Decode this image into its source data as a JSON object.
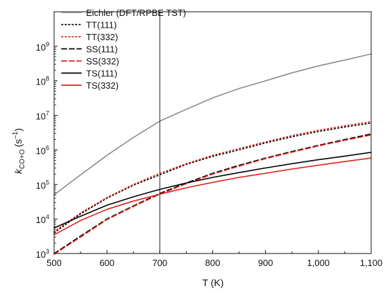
{
  "chart_data": {
    "type": "line",
    "xlabel": "T (K)",
    "ylabel": "k",
    "ylabel_subscript": "CO+O",
    "ylabel_units": "(s",
    "ylabel_units_sup": "–1",
    "ylabel_units_close": ")",
    "xlim": [
      500,
      1100
    ],
    "ylim": [
      1000,
      10000000000
    ],
    "y_scale": "log",
    "grid": false,
    "legend_position": "top-left",
    "x_ticks": [
      {
        "value": 500,
        "label": "500"
      },
      {
        "value": 600,
        "label": "600"
      },
      {
        "value": 700,
        "label": "700"
      },
      {
        "value": 800,
        "label": "800"
      },
      {
        "value": 900,
        "label": "900"
      },
      {
        "value": 1000,
        "label": "1,000"
      },
      {
        "value": 1100,
        "label": "1,100"
      }
    ],
    "y_ticks": [
      {
        "value": 1000,
        "base": "10",
        "exp": "3"
      },
      {
        "value": 10000,
        "base": "10",
        "exp": "4"
      },
      {
        "value": 100000,
        "base": "10",
        "exp": "5"
      },
      {
        "value": 1000000,
        "base": "10",
        "exp": "6"
      },
      {
        "value": 10000000,
        "base": "10",
        "exp": "7"
      },
      {
        "value": 100000000,
        "base": "10",
        "exp": "8"
      },
      {
        "value": 1000000000,
        "base": "10",
        "exp": "9"
      }
    ],
    "vertical_line_x": 700,
    "series": [
      {
        "name": "Eichler (DFT/RPBE TST)",
        "color": "#8c8c8c",
        "dash": "solid",
        "x": [
          500,
          550,
          600,
          650,
          700,
          750,
          800,
          850,
          900,
          950,
          1000,
          1050,
          1100
        ],
        "y": [
          50000,
          190000,
          700000,
          2300000,
          6800000,
          15000000,
          32000000,
          60000000,
          100000000,
          170000000,
          270000000,
          400000000,
          600000000
        ]
      },
      {
        "name": "TT(111)",
        "color": "#000000",
        "dash": "dot",
        "x": [
          500,
          550,
          600,
          650,
          700,
          750,
          800,
          850,
          900,
          950,
          1000,
          1050,
          1100
        ],
        "y": [
          4000,
          14000,
          40000,
          95000,
          190000,
          380000,
          650000,
          1000000,
          1600000,
          2400000,
          3400000,
          4600000,
          6000000
        ]
      },
      {
        "name": "TT(332)",
        "color": "#e0201a",
        "dash": "dot",
        "x": [
          500,
          550,
          600,
          650,
          700,
          750,
          800,
          850,
          900,
          950,
          1000,
          1050,
          1100
        ],
        "y": [
          4300,
          15000,
          42000,
          100000,
          210000,
          400000,
          700000,
          1100000,
          1700000,
          2600000,
          3700000,
          5000000,
          6600000
        ]
      },
      {
        "name": "SS(111)",
        "color": "#000000",
        "dash": "dash",
        "x": [
          500,
          550,
          600,
          650,
          700,
          750,
          800,
          850,
          900,
          950,
          1000,
          1050,
          1100
        ],
        "y": [
          1000,
          3200,
          10000,
          24000,
          55000,
          110000,
          210000,
          360000,
          580000,
          900000,
          1350000,
          2000000,
          2900000
        ]
      },
      {
        "name": "SS(332)",
        "color": "#e0201a",
        "dash": "dash",
        "x": [
          500,
          550,
          600,
          650,
          700,
          750,
          800,
          850,
          900,
          950,
          1000,
          1050,
          1100
        ],
        "y": [
          950,
          3000,
          9600,
          23000,
          52000,
          105000,
          200000,
          340000,
          560000,
          860000,
          1300000,
          1900000,
          2700000
        ]
      },
      {
        "name": "TS(111)",
        "color": "#000000",
        "dash": "solid",
        "x": [
          500,
          550,
          600,
          650,
          700,
          750,
          800,
          850,
          900,
          950,
          1000,
          1050,
          1100
        ],
        "y": [
          5500,
          12000,
          25000,
          44000,
          72000,
          110000,
          160000,
          220000,
          300000,
          400000,
          520000,
          660000,
          850000
        ]
      },
      {
        "name": "TS(332)",
        "color": "#e0201a",
        "dash": "solid",
        "x": [
          500,
          550,
          600,
          650,
          700,
          750,
          800,
          850,
          900,
          950,
          1000,
          1050,
          1100
        ],
        "y": [
          3500,
          9000,
          19000,
          33000,
          52000,
          80000,
          115000,
          160000,
          210000,
          280000,
          360000,
          460000,
          580000
        ]
      }
    ]
  }
}
